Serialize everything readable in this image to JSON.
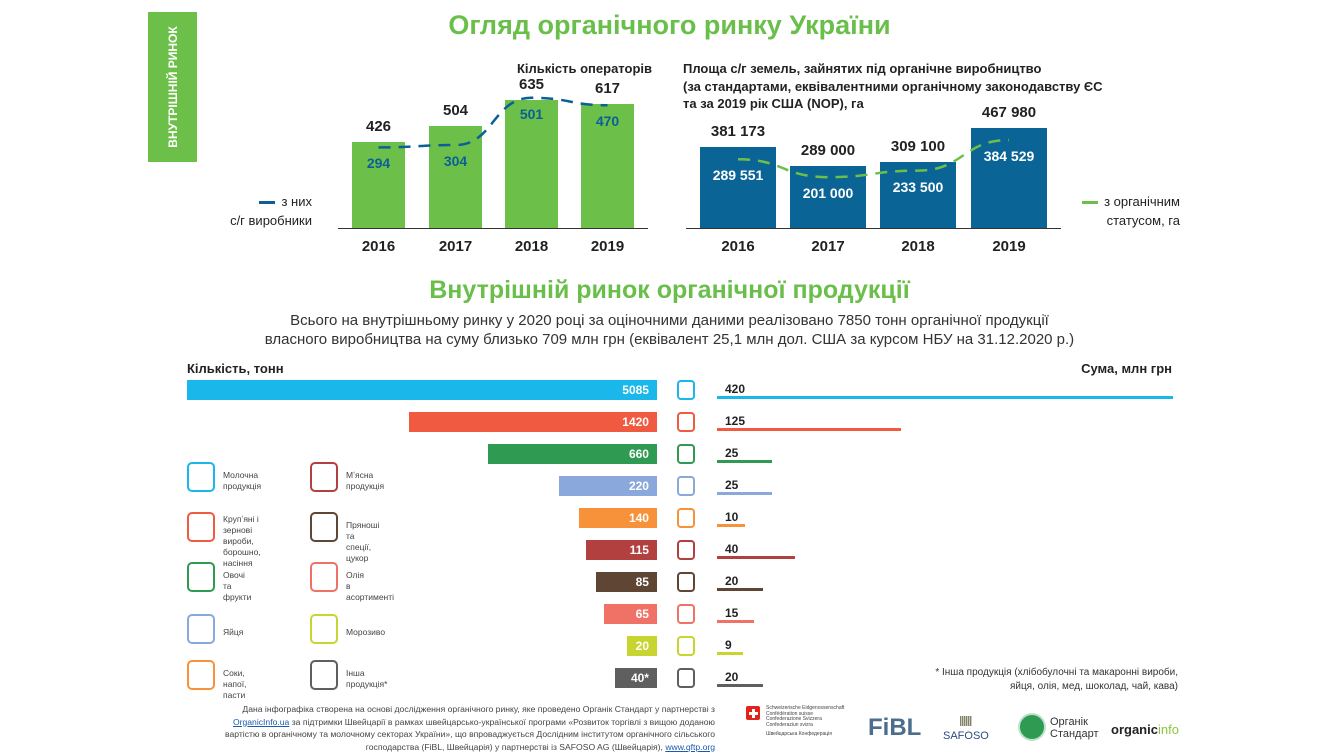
{
  "sidebar": {
    "label": "ВНУТРІШНІЙ РИНОК"
  },
  "title": "Огляд органічного ринку України",
  "section_title": "Внутрішній ринок органічної продукції",
  "subtitle": [
    "Всього на внутрішньому ринку у 2020 році за оціночними даними реалізовано 7850 тонн органічної продукції",
    "власного виробництва на суму близько 709 млн грн (еквівалент 25,1 млн дол. США за курсом НБУ на 31.12.2020 р.)"
  ],
  "chart_data": [
    {
      "type": "bar",
      "title": "Кількість операторів",
      "categories": [
        "2016",
        "2017",
        "2018",
        "2019"
      ],
      "series": [
        {
          "name": "",
          "values": [
            426,
            504,
            635,
            617
          ],
          "color": "#6cc04a"
        },
        {
          "name": "з них с/г виробники",
          "type": "line",
          "values": [
            294,
            304,
            501,
            470
          ],
          "color": "#0b5f96"
        }
      ],
      "legend": [
        "з них",
        "с/г виробники"
      ],
      "legend_position": "left"
    },
    {
      "type": "bar",
      "title": [
        "Площа с/г земель, зайнятих під органічне виробництво",
        "(за стандартами, еквівалентними органічному законодавству ЄС",
        "та за 2019 рік США (NOP), га"
      ],
      "categories": [
        "2016",
        "2017",
        "2018",
        "2019"
      ],
      "series": [
        {
          "name": "",
          "values": [
            381173,
            289000,
            309100,
            467980
          ],
          "labels": [
            "381 173",
            "289 000",
            "309 100",
            "467 980"
          ],
          "color": "#0b6496"
        },
        {
          "name": "з органічним статусом, га",
          "type": "line",
          "values": [
            289551,
            201000,
            233500,
            384529
          ],
          "labels": [
            "289 551",
            "201 000",
            "233 500",
            "384 529"
          ],
          "color": "#6cc04a"
        }
      ],
      "legend": [
        "з органічним",
        "статусом, га"
      ],
      "legend_position": "right"
    },
    {
      "type": "bar",
      "orientation": "horizontal",
      "left_label": "Кількість, тонн",
      "right_label": "Сума, млн грн",
      "categories": [
        "Молочна продукція",
        "Крупʼяні і зернові вироби, борошно, насіння",
        "Овочі та фрукти",
        "Яйця",
        "Соки, напої, пасти",
        "Мʼясна продукція",
        "Пряноші та спеції, цукор",
        "Олія в асортименті",
        "Морозиво",
        "Інша продукція*"
      ],
      "quantity": [
        5085,
        1420,
        660,
        220,
        140,
        115,
        85,
        65,
        20,
        40
      ],
      "quantity_labels": [
        "5085",
        "1420",
        "660",
        "220",
        "140",
        "115",
        "85",
        "65",
        "20",
        "40*"
      ],
      "sum": [
        420,
        125,
        25,
        25,
        10,
        40,
        20,
        15,
        9,
        20
      ],
      "colors": [
        "#1ab7ea",
        "#f05a40",
        "#2e9a52",
        "#8aa8db",
        "#f7923a",
        "#b2403f",
        "#5e4534",
        "#f07266",
        "#c8d530",
        "#5f5f5f"
      ],
      "icons": [
        "milk-icon",
        "wheat-icon",
        "vegetables-icon",
        "eggs-icon",
        "juice-icon",
        "sausage-icon",
        "spices-icon",
        "oil-icon",
        "ice-cream-icon",
        "leaf-icon"
      ]
    }
  ],
  "legend": [
    {
      "label": [
        "Молочна",
        "продукція"
      ],
      "icon": "milk-icon",
      "color": "#1ab7ea"
    },
    {
      "label": [
        "Мʼясна",
        "продукція"
      ],
      "icon": "sausage-icon",
      "color": "#b2403f"
    },
    {
      "label": [
        "Крупʼяні і зернові",
        "вироби, борошно,",
        "насіння"
      ],
      "icon": "wheat-icon",
      "color": "#f05a40"
    },
    {
      "label": [
        "Пряноші",
        "та спеції, цукор"
      ],
      "icon": "spices-icon",
      "color": "#5e4534"
    },
    {
      "label": [
        "Овочі та",
        "фрукти"
      ],
      "icon": "vegetables-icon",
      "color": "#2e9a52"
    },
    {
      "label": [
        "Олія",
        "в асортименті"
      ],
      "icon": "oil-icon",
      "color": "#f07266"
    },
    {
      "label": [
        "Яйця"
      ],
      "icon": "eggs-icon",
      "color": "#8aa8db"
    },
    {
      "label": [
        "Морозиво"
      ],
      "icon": "ice-cream-icon",
      "color": "#c8d530"
    },
    {
      "label": [
        "Соки,",
        "напої, пасти"
      ],
      "icon": "juice-icon",
      "color": "#f7923a"
    },
    {
      "label": [
        "Інша",
        "продукція*"
      ],
      "icon": "leaf-icon",
      "color": "#5f5f5f"
    }
  ],
  "footnote": [
    "* Інша продукція (хлібобулочні та макаронні вироби,",
    "яйця, олія, мед, шоколад, чай, кава)"
  ],
  "footer": {
    "l1": "Дана інфографіка створена на основі дослідження органічного ринку, яке проведено Органік Стандарт у партнерстві з",
    "link1": "OrganicInfo.ua",
    "l2": " за підтримки Швейцарії в рамках швейцарсько-української програми «Розвиток торгівлі з вищою доданою",
    "l3": "вартістю в органічному та молочному секторах України», що впроваджується Дослідним інститутом органічного сільського",
    "l4": "господарства (FiBL, Швейцарія) у партнерстві із SAFOSO AG (Швейцарія), ",
    "link2": "www.qftp.org"
  },
  "logos": {
    "swiss": [
      "Schweizerische Eidgenossenschaft",
      "Confédération suisse",
      "Confederazione Svizzera",
      "Confederaziun svizra",
      "Швейцарська Конфедерація"
    ],
    "fibl": "FiBL",
    "safoso": "SAFOSO",
    "organic_standard": [
      "Органік",
      "Стандарт"
    ],
    "organicinfo": [
      "organic",
      "info"
    ]
  }
}
